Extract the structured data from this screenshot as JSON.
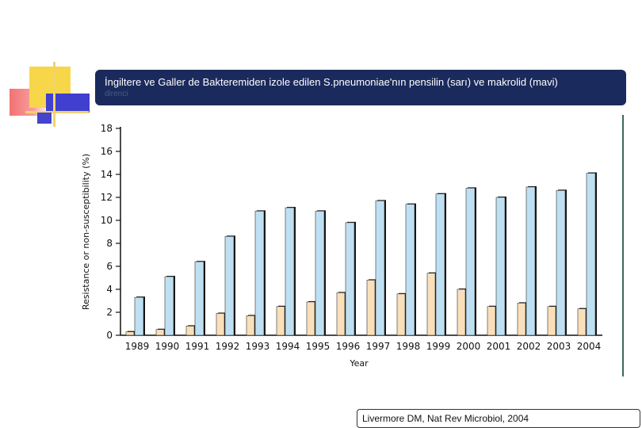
{
  "slide": {
    "title": "İngiltere ve Galler de Bakteremiden izole edilen S.pneumoniae'nın  pensilin  (sarı) ve makrolid  (mavi)",
    "subtitle": "direnci",
    "citation": "Livermore DM, Nat Rev Microbiol, 2004"
  },
  "colors": {
    "penicillin": "#f9dfba",
    "macrolide": "#bfe0f2",
    "title_bg": "#1b2a5c"
  },
  "chart_data": {
    "type": "bar",
    "title": "",
    "xlabel": "Year",
    "ylabel": "Resistance or non-susceptibility (%)",
    "ylim": [
      0,
      18
    ],
    "yticks": [
      0,
      2,
      4,
      6,
      8,
      10,
      12,
      14,
      16,
      18
    ],
    "categories": [
      "1989",
      "1990",
      "1991",
      "1992",
      "1993",
      "1994",
      "1995",
      "1996",
      "1997",
      "1998",
      "1999",
      "2000",
      "2001",
      "2002",
      "2003",
      "2004"
    ],
    "series": [
      {
        "name": "Penicillin (yellow)",
        "values": [
          0.3,
          0.5,
          0.8,
          1.9,
          1.7,
          2.5,
          2.9,
          3.7,
          4.8,
          3.6,
          5.4,
          4.0,
          2.5,
          2.8,
          2.5,
          2.3
        ]
      },
      {
        "name": "Macrolide (blue)",
        "values": [
          3.3,
          5.1,
          6.4,
          8.6,
          10.8,
          11.1,
          10.8,
          9.8,
          11.7,
          11.4,
          12.3,
          12.8,
          12.0,
          12.9,
          12.6,
          14.1
        ]
      }
    ]
  }
}
